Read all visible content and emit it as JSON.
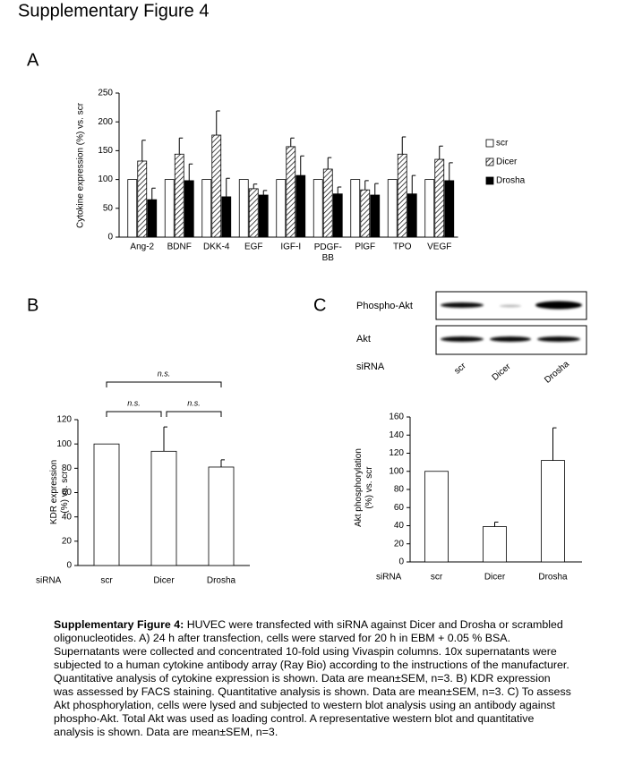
{
  "figure_title": "Supplementary Figure 4",
  "panels": [
    "A",
    "B",
    "C"
  ],
  "chart_data": [
    {
      "type": "bar",
      "ylabel": "Cytokine expression (%) vs. scr",
      "categories": [
        "Ang-2",
        "BDNF",
        "DKK-4",
        "EGF",
        "IGF-I",
        "PDGF-\nBB",
        "PlGF",
        "TPO",
        "VEGF"
      ],
      "series": [
        {
          "name": "scr",
          "color": "#ffffff",
          "values": [
            100,
            100,
            100,
            100,
            100,
            100,
            100,
            100,
            100
          ]
        },
        {
          "name": "Dicer",
          "color": "#ffffff",
          "hatch": true,
          "values": [
            132,
            144,
            177,
            84,
            157,
            118,
            82,
            144,
            135
          ],
          "errors": [
            36,
            28,
            42,
            8,
            15,
            20,
            16,
            30,
            23
          ]
        },
        {
          "name": "Drosha",
          "color": "#000000",
          "values": [
            65,
            98,
            70,
            73,
            107,
            75,
            73,
            75,
            98
          ],
          "errors": [
            20,
            29,
            32,
            8,
            34,
            12,
            20,
            32,
            31
          ]
        }
      ],
      "ylim": [
        0,
        250
      ],
      "yticks": [
        0,
        50,
        100,
        150,
        200,
        250
      ]
    },
    {
      "type": "bar",
      "ylabel": "KDR expression\n(%) vs. scr",
      "xlabel": "siRNA",
      "categories": [
        "scr",
        "Dicer",
        "Drosha"
      ],
      "values": [
        100,
        94,
        81
      ],
      "errors": [
        0,
        20,
        6
      ],
      "color": "#ffffff",
      "ylim": [
        0,
        120
      ],
      "yticks": [
        0,
        20,
        40,
        60,
        80,
        100,
        120
      ],
      "significance": [
        "n.s.",
        "n.s.",
        "n.s."
      ]
    },
    {
      "type": "bar",
      "ylabel": "Akt phosphorylation\n(%) vs. scr",
      "xlabel": "siRNA",
      "categories": [
        "scr",
        "Dicer",
        "Drosha"
      ],
      "values": [
        100,
        39,
        112
      ],
      "errors": [
        0,
        5,
        36
      ],
      "color": "#ffffff",
      "ylim": [
        0,
        160
      ],
      "yticks": [
        0,
        20,
        40,
        60,
        80,
        100,
        120,
        140,
        160
      ]
    }
  ],
  "blot": {
    "rows": [
      "Phospho-Akt",
      "Akt"
    ],
    "xlabel": "siRNA",
    "lanes": [
      "scr",
      "Dicer",
      "Drosha"
    ]
  },
  "caption": {
    "heading": "Supplementary Figure 4:",
    "text": " HUVEC were transfected  with siRNA against Dicer and Drosha or scrambled oligonucleotides. A) 24 h after transfection, cells were starved for 20 h in EBM + 0.05 % BSA. Supernatants were collected and concentrated 10-fold using Vivaspin columns. 10x supernatants were subjected to a human cytokine antibody array (Ray Bio) according to the instructions of the manufacturer. Quantitative analysis of cytokine expression is shown. Data are mean±SEM, n=3. B) KDR expression was assessed by FACS staining. Quantitative analysis is shown. Data are mean±SEM, n=3. C) To assess Akt phosphorylation, cells were lysed and subjected to western blot analysis using an antibody against phospho-Akt. Total Akt was used as loading control. A representative western blot and quantitative analysis is shown. Data are mean±SEM, n=3."
  }
}
